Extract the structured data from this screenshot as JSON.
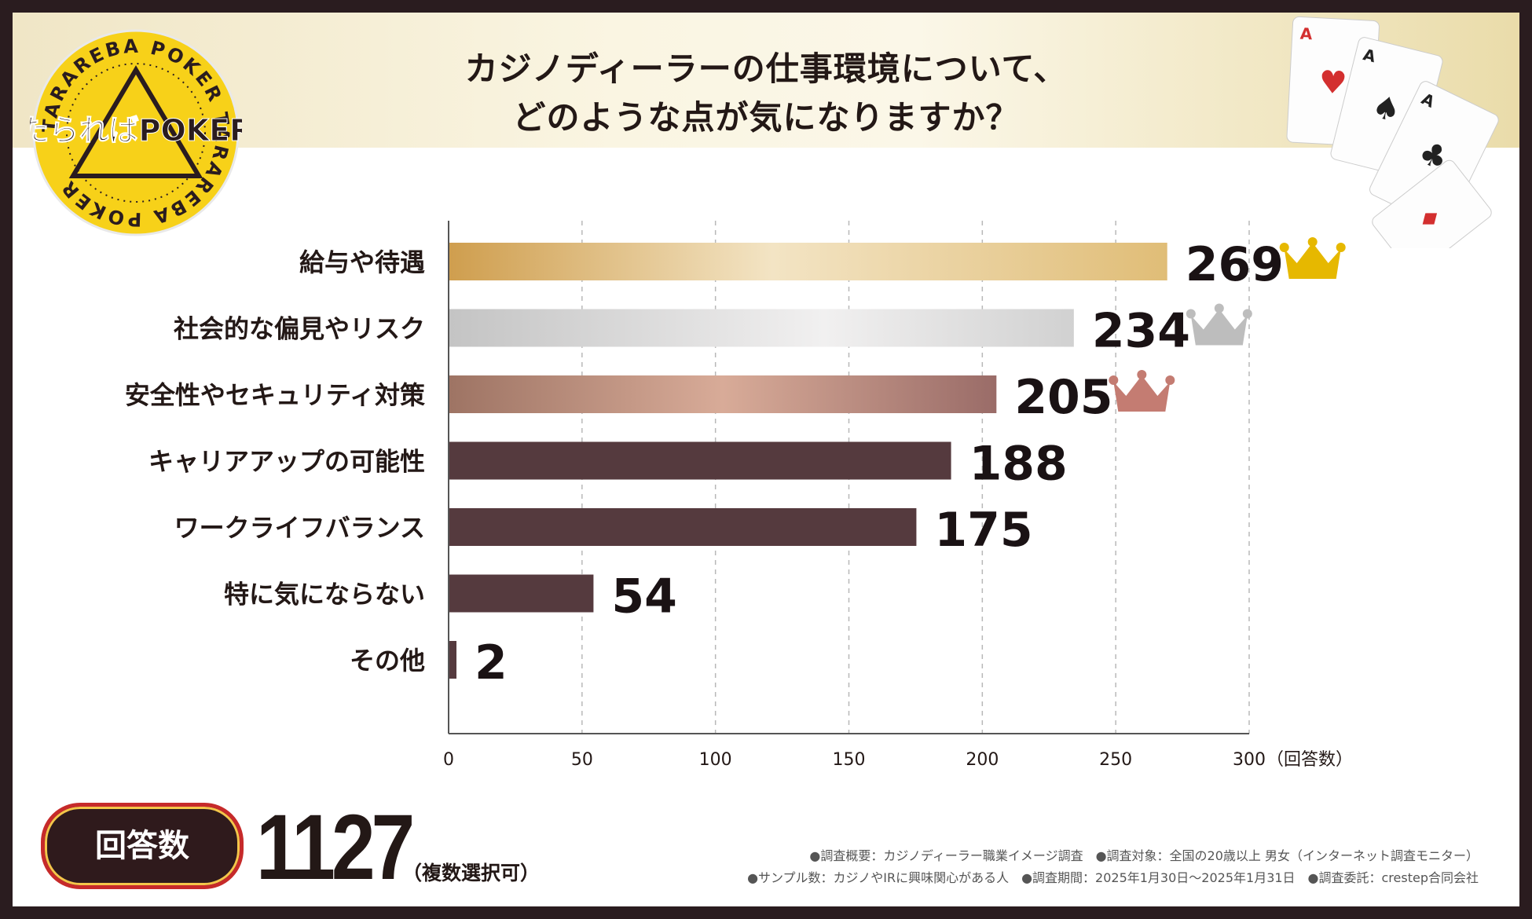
{
  "title": {
    "line1": "カジノディーラーの仕事環境について、",
    "line2": "どのような点が気になりますか？"
  },
  "logo": {
    "main": "たらればPOKER",
    "ring": "TARAREBA POKER TARAREBA POKER"
  },
  "chart_data": {
    "type": "bar",
    "orientation": "horizontal",
    "categories": [
      "給与や待遇",
      "社会的な偏見やリスク",
      "安全性やセキュリティ対策",
      "キャリアアップの可能性",
      "ワークライフバランス",
      "特に気にならない",
      "その他"
    ],
    "values": [
      269,
      234,
      205,
      188,
      175,
      54,
      2
    ],
    "value_labels": [
      "269",
      "234",
      "205",
      "188",
      "175",
      "54",
      "2"
    ],
    "xlim": [
      0,
      300
    ],
    "xticks": [
      0,
      50,
      100,
      150,
      200,
      250,
      300
    ],
    "xtick_labels": [
      "0",
      "50",
      "100",
      "150",
      "200",
      "250",
      "300"
    ],
    "xlabel": "（回答数）",
    "grid": "vertical dashed",
    "bar_colors": [
      "#d7ad5f",
      "#c9c9c9",
      "#b88b7c",
      "#553a3e",
      "#553a3e",
      "#553a3e",
      "#553a3e"
    ],
    "crowns": [
      {
        "rank": 1,
        "color": "#e6b800"
      },
      {
        "rank": 2,
        "color": "#bdbdbd"
      },
      {
        "rank": 3,
        "color": "#c47c72"
      }
    ]
  },
  "total": {
    "badge": "回答数",
    "value": "1127",
    "note": "（複数選択可）"
  },
  "notes": {
    "line1": "●調査概要：カジノディーラー職業イメージ調査　●調査対象：全国の20歳以上 男女（インターネット調査モニター）",
    "line2": "●サンプル数：カジノやIRに興味関心がある人　●調査期間：2025年1月30日～2025年1月31日　●調査委託：crestep合同会社"
  },
  "colors": {
    "frame": "#2a1c1f",
    "text": "#231816",
    "gold": "#f7d119"
  }
}
